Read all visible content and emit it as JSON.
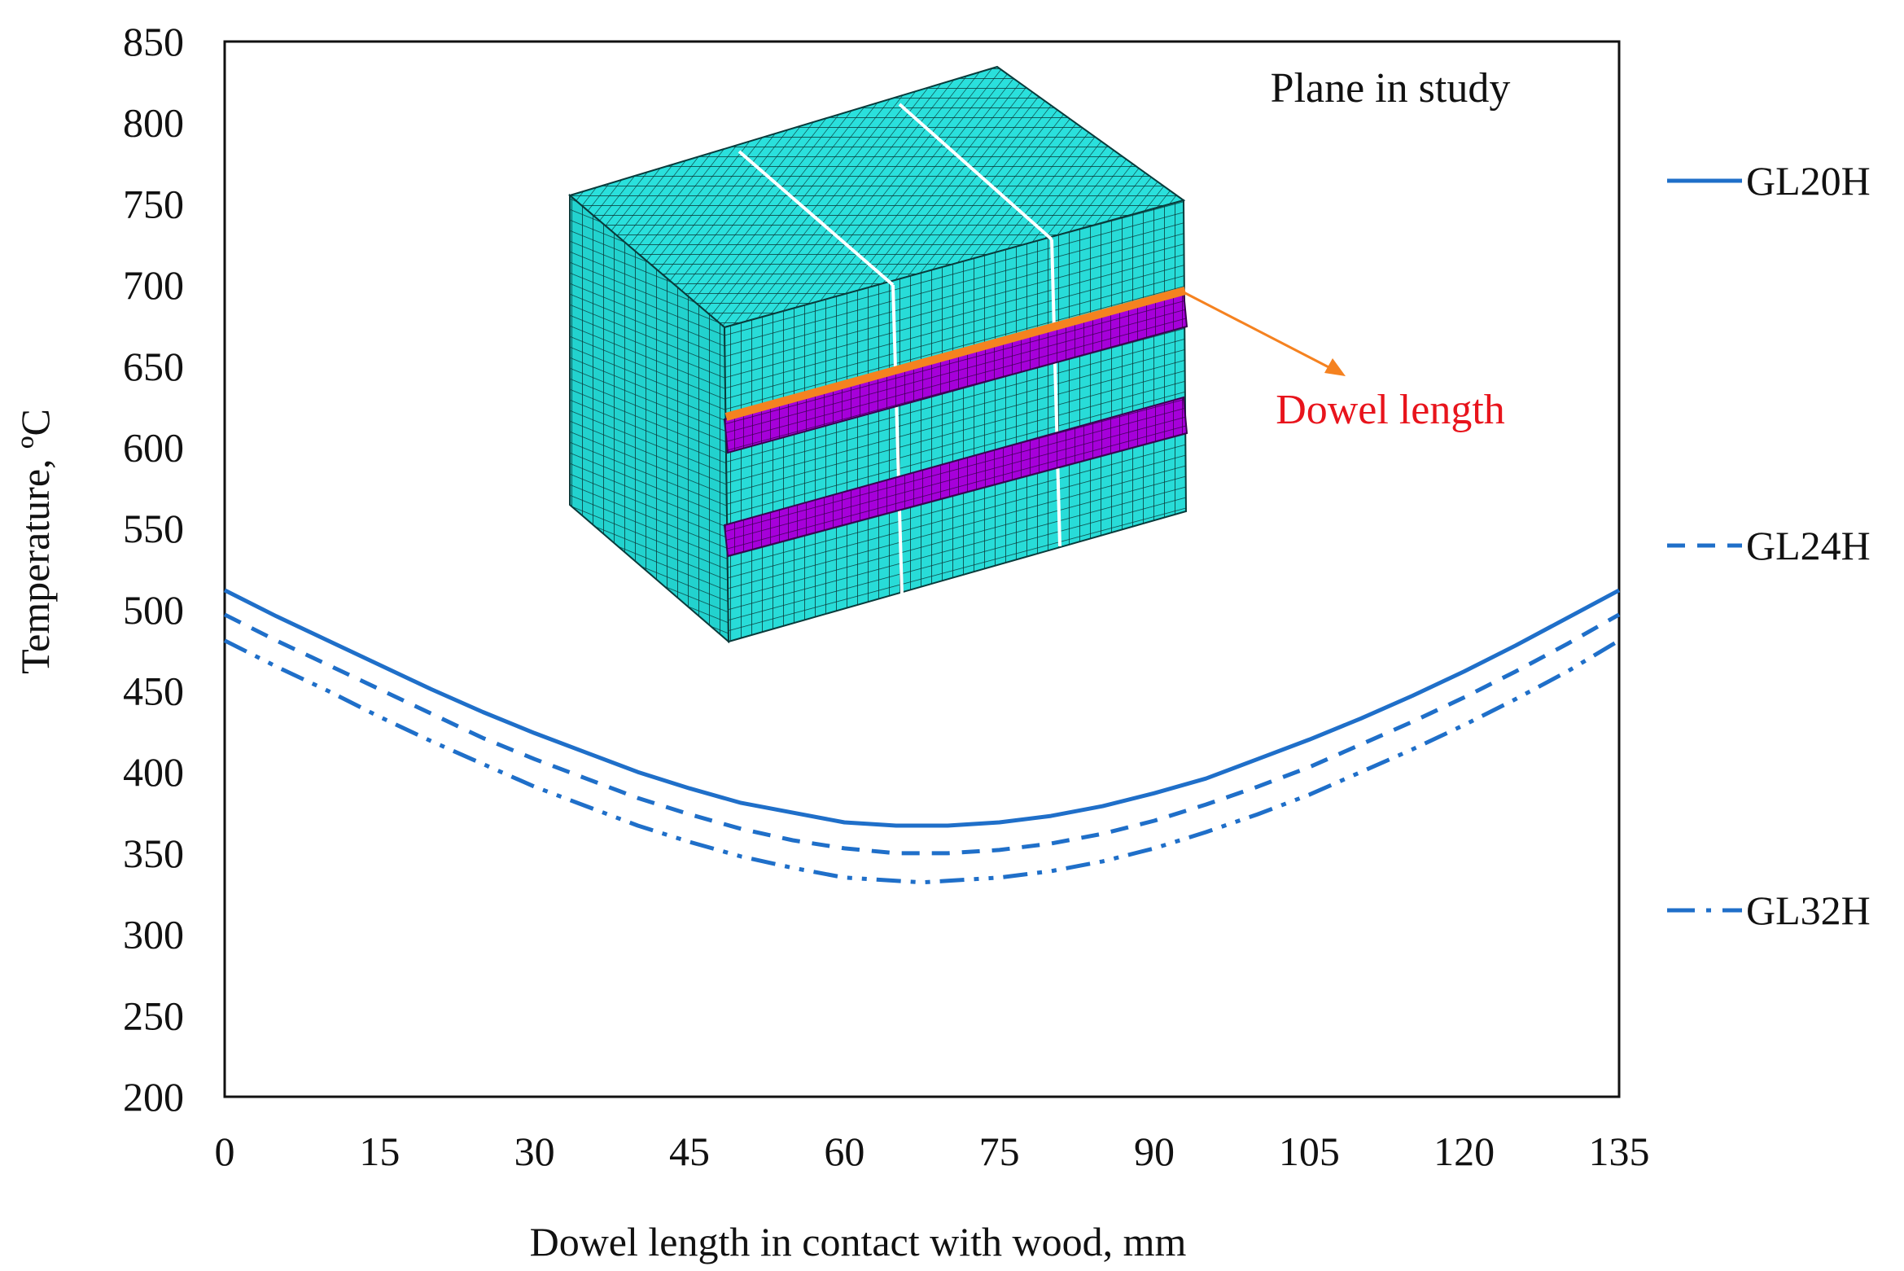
{
  "chart_data": {
    "type": "line",
    "xlabel": "Dowel length in contact with wood, mm",
    "ylabel": "Temperature, ºC",
    "xlim": [
      0,
      135
    ],
    "ylim": [
      200,
      850
    ],
    "x_ticks": [
      0,
      15,
      30,
      45,
      60,
      75,
      90,
      105,
      120,
      135
    ],
    "y_ticks": [
      200,
      250,
      300,
      350,
      400,
      450,
      500,
      550,
      600,
      650,
      700,
      750,
      800,
      850
    ],
    "grid": false,
    "legend_position": "right",
    "series": [
      {
        "name": "GL20H",
        "style": "solid",
        "color": "#1f6fc9",
        "x": [
          0,
          5,
          10,
          15,
          20,
          25,
          30,
          35,
          40,
          45,
          50,
          55,
          60,
          65,
          67.5,
          70,
          75,
          80,
          85,
          90,
          95,
          100,
          105,
          110,
          115,
          120,
          125,
          130,
          135
        ],
        "y": [
          512,
          496,
          481,
          466,
          451,
          437,
          424,
          412,
          400,
          390,
          381,
          375,
          369,
          367,
          367,
          367,
          369,
          373,
          379,
          387,
          396,
          408,
          420,
          433,
          447,
          462,
          478,
          495,
          512
        ]
      },
      {
        "name": "GL24H",
        "style": "dashed",
        "color": "#1f6fc9",
        "x": [
          0,
          5,
          10,
          15,
          20,
          25,
          30,
          35,
          40,
          45,
          50,
          55,
          60,
          65,
          67.5,
          70,
          75,
          80,
          85,
          90,
          95,
          100,
          105,
          110,
          115,
          120,
          125,
          130,
          135
        ],
        "y": [
          497,
          481,
          466,
          451,
          436,
          421,
          408,
          396,
          384,
          374,
          365,
          358,
          353,
          350,
          350,
          350,
          352,
          356,
          362,
          370,
          380,
          391,
          403,
          417,
          431,
          446,
          462,
          479,
          497
        ]
      },
      {
        "name": "GL32H",
        "style": "dash-dot-dot",
        "color": "#1f6fc9",
        "x": [
          0,
          5,
          10,
          15,
          20,
          25,
          30,
          35,
          40,
          45,
          50,
          55,
          60,
          65,
          67.5,
          70,
          75,
          80,
          85,
          90,
          95,
          100,
          105,
          110,
          115,
          120,
          125,
          130,
          135
        ],
        "y": [
          481,
          465,
          450,
          434,
          419,
          405,
          391,
          379,
          367,
          357,
          348,
          341,
          335,
          333,
          332,
          333,
          335,
          339,
          345,
          353,
          363,
          374,
          386,
          400,
          414,
          429,
          445,
          462,
          481
        ]
      }
    ],
    "inset": {
      "title": "Plane in study",
      "label": "Dowel length",
      "colors": {
        "wood_mesh": "#1ee3de",
        "dowel_mesh": "#a400d8",
        "highlight_line": "#f58220",
        "label": "#e8141c"
      }
    }
  }
}
